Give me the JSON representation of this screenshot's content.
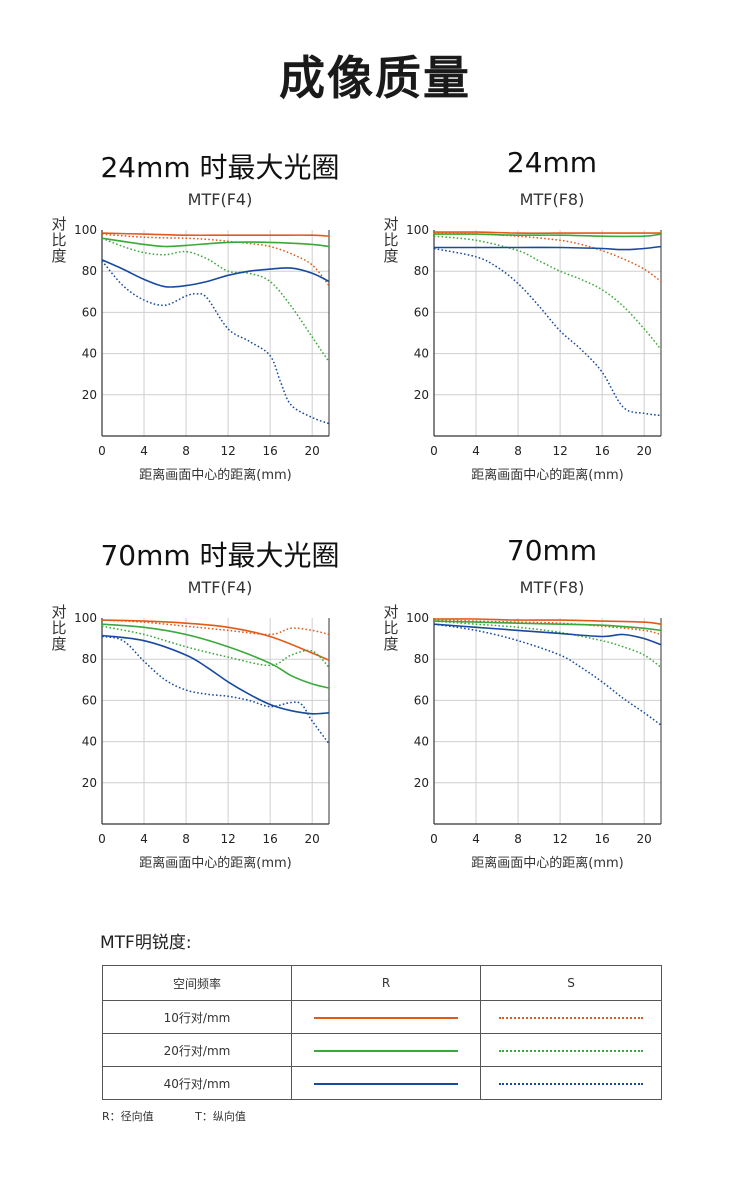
{
  "page_title": "成像质量",
  "colors": {
    "10": "#e05a1a",
    "20": "#3aa83a",
    "40": "#174a9e"
  },
  "panel_labels": {
    "ylabel": "对比度",
    "xlabel": "距离画面中心的距离(mm)"
  },
  "chart_data": [
    {
      "type": "line",
      "title": "24mm 时最大光圈",
      "subtitle": "MTF(F4)",
      "xlabel": "距离画面中心的距离(mm)",
      "ylabel": "对比度",
      "xlim": [
        0,
        21.6
      ],
      "ylim": [
        0,
        100
      ],
      "xticks": [
        0,
        4,
        8,
        12,
        16,
        20
      ],
      "yticks": [
        20,
        40,
        60,
        80,
        100
      ],
      "series": [
        {
          "freq": "10",
          "style": "R",
          "x": [
            0,
            4,
            8,
            12,
            16,
            20,
            21.6
          ],
          "y": [
            98.5,
            98,
            97.5,
            97.5,
            97.5,
            97.5,
            97
          ]
        },
        {
          "freq": "10",
          "style": "S",
          "x": [
            0,
            4,
            8,
            10,
            12,
            14,
            16,
            18,
            20,
            21.6
          ],
          "y": [
            98,
            96.5,
            96,
            95.5,
            94.5,
            93.5,
            92,
            88.5,
            83,
            73
          ]
        },
        {
          "freq": "20",
          "style": "R",
          "x": [
            0,
            4,
            6,
            8,
            12,
            16,
            20,
            21.6
          ],
          "y": [
            96,
            93,
            92,
            92.5,
            94,
            94,
            93,
            92
          ]
        },
        {
          "freq": "20",
          "style": "S",
          "x": [
            0,
            2,
            4,
            6,
            8,
            10,
            12,
            14,
            16,
            18,
            20,
            21.6
          ],
          "y": [
            96,
            92,
            89,
            88,
            89.5,
            86,
            80,
            79,
            75,
            63,
            48,
            36
          ]
        },
        {
          "freq": "40",
          "style": "R",
          "x": [
            0,
            2,
            4,
            6,
            8,
            10,
            12,
            14,
            16,
            18,
            20,
            21.6
          ],
          "y": [
            85.5,
            81,
            76,
            72.5,
            73,
            75,
            78,
            80,
            81,
            81.5,
            79,
            75
          ]
        },
        {
          "freq": "40",
          "style": "S",
          "x": [
            0,
            2,
            4,
            6,
            8,
            9,
            10,
            12,
            14,
            16,
            17,
            18,
            20,
            21.6
          ],
          "y": [
            85,
            73,
            66,
            63.5,
            68,
            69,
            67,
            52,
            46,
            39,
            26,
            15,
            9,
            6
          ]
        }
      ]
    },
    {
      "type": "line",
      "title": "24mm",
      "subtitle": "MTF(F8)",
      "xlabel": "距离画面中心的距离(mm)",
      "ylabel": "对比度",
      "xlim": [
        0,
        21.6
      ],
      "ylim": [
        0,
        100
      ],
      "xticks": [
        0,
        4,
        8,
        12,
        16,
        20
      ],
      "yticks": [
        20,
        40,
        60,
        80,
        100
      ],
      "series": [
        {
          "freq": "10",
          "style": "R",
          "x": [
            0,
            4,
            8,
            12,
            16,
            20,
            21.6
          ],
          "y": [
            99,
            99,
            98.5,
            98.5,
            98.5,
            98.5,
            98.5
          ]
        },
        {
          "freq": "10",
          "style": "S",
          "x": [
            0,
            4,
            8,
            12,
            14,
            16,
            18,
            20,
            21.6
          ],
          "y": [
            98.5,
            98,
            97,
            95,
            93,
            90,
            86,
            81,
            75
          ]
        },
        {
          "freq": "20",
          "style": "R",
          "x": [
            0,
            4,
            8,
            12,
            16,
            20,
            21.6
          ],
          "y": [
            98,
            98,
            97.5,
            97.5,
            97,
            97,
            98
          ]
        },
        {
          "freq": "20",
          "style": "S",
          "x": [
            0,
            4,
            8,
            10,
            12,
            14,
            16,
            18,
            20,
            21.6
          ],
          "y": [
            97,
            95,
            90,
            85,
            80,
            76,
            71,
            63,
            52,
            42
          ]
        },
        {
          "freq": "40",
          "style": "R",
          "x": [
            0,
            4,
            8,
            12,
            16,
            18,
            20,
            21.6
          ],
          "y": [
            91.5,
            91.5,
            91.5,
            91.5,
            91,
            90.5,
            91,
            92
          ]
        },
        {
          "freq": "40",
          "style": "S",
          "x": [
            0,
            4,
            6,
            8,
            10,
            12,
            14,
            16,
            18,
            20,
            21.6
          ],
          "y": [
            91,
            87,
            82,
            74,
            63,
            51,
            42,
            31,
            14,
            11,
            10
          ]
        }
      ]
    },
    {
      "type": "line",
      "title": "70mm 时最大光圈",
      "subtitle": "MTF(F4)",
      "xlabel": "距离画面中心的距离(mm)",
      "ylabel": "对比度",
      "xlim": [
        0,
        21.6
      ],
      "ylim": [
        0,
        100
      ],
      "xticks": [
        0,
        4,
        8,
        12,
        16,
        20
      ],
      "yticks": [
        20,
        40,
        60,
        80,
        100
      ],
      "series": [
        {
          "freq": "10",
          "style": "R",
          "x": [
            0,
            4,
            8,
            12,
            16,
            20,
            21.6
          ],
          "y": [
            99,
            98.5,
            97.5,
            95.5,
            91,
            83,
            79.5
          ]
        },
        {
          "freq": "10",
          "style": "S",
          "x": [
            0,
            4,
            8,
            12,
            16,
            18,
            20,
            21.6
          ],
          "y": [
            99,
            98,
            96,
            94,
            92,
            95,
            94,
            92
          ]
        },
        {
          "freq": "20",
          "style": "R",
          "x": [
            0,
            4,
            8,
            12,
            16,
            18,
            20,
            21.6
          ],
          "y": [
            97,
            95.5,
            92,
            86,
            78,
            72,
            68,
            66
          ]
        },
        {
          "freq": "20",
          "style": "S",
          "x": [
            0,
            4,
            8,
            12,
            16,
            18,
            20,
            21.6
          ],
          "y": [
            96,
            92,
            86,
            81,
            77,
            82,
            84,
            76
          ]
        },
        {
          "freq": "40",
          "style": "R",
          "x": [
            0,
            4,
            8,
            10,
            12,
            14,
            16,
            18,
            20,
            21.6
          ],
          "y": [
            91.5,
            89,
            82,
            76,
            69,
            63,
            58,
            55,
            53.5,
            54
          ]
        },
        {
          "freq": "40",
          "style": "S",
          "x": [
            0,
            2,
            4,
            6,
            8,
            10,
            12,
            14,
            16,
            18,
            19,
            20,
            21.6
          ],
          "y": [
            91,
            89,
            79,
            70,
            65,
            63,
            62,
            60,
            57,
            59,
            58,
            50,
            39
          ]
        }
      ]
    },
    {
      "type": "line",
      "title": "70mm",
      "subtitle": "MTF(F8)",
      "xlabel": "距离画面中心的距离(mm)",
      "ylabel": "对比度",
      "xlim": [
        0,
        21.6
      ],
      "ylim": [
        0,
        100
      ],
      "xticks": [
        0,
        4,
        8,
        12,
        16,
        20
      ],
      "yticks": [
        20,
        40,
        60,
        80,
        100
      ],
      "series": [
        {
          "freq": "10",
          "style": "R",
          "x": [
            0,
            4,
            8,
            12,
            16,
            20,
            21.6
          ],
          "y": [
            99.5,
            99.5,
            99,
            99,
            98.5,
            98,
            97
          ]
        },
        {
          "freq": "10",
          "style": "S",
          "x": [
            0,
            4,
            8,
            12,
            16,
            20,
            21.6
          ],
          "y": [
            99,
            98.5,
            98,
            97.5,
            96,
            94,
            92
          ]
        },
        {
          "freq": "20",
          "style": "R",
          "x": [
            0,
            4,
            8,
            12,
            16,
            20,
            21.6
          ],
          "y": [
            98.5,
            98,
            97.5,
            97,
            96.5,
            95,
            94
          ]
        },
        {
          "freq": "20",
          "style": "S",
          "x": [
            0,
            4,
            8,
            12,
            16,
            18,
            20,
            21.6
          ],
          "y": [
            98.5,
            97,
            95.5,
            93,
            89,
            86,
            82,
            76
          ]
        },
        {
          "freq": "40",
          "style": "R",
          "x": [
            0,
            4,
            8,
            12,
            16,
            18,
            20,
            21.6
          ],
          "y": [
            97,
            95.5,
            94,
            92.5,
            91,
            92,
            90,
            87
          ]
        },
        {
          "freq": "40",
          "style": "S",
          "x": [
            0,
            4,
            8,
            12,
            14,
            16,
            18,
            20,
            21.6
          ],
          "y": [
            97,
            94,
            89,
            82,
            76,
            69,
            61,
            54,
            48
          ]
        }
      ]
    }
  ],
  "legend": {
    "title": "MTF明锐度:",
    "headers": {
      "freq": "空间频率",
      "r": "R",
      "s": "S"
    },
    "rows": [
      {
        "label": "10行对/mm",
        "freq": "10"
      },
      {
        "label": "20行对/mm",
        "freq": "20"
      },
      {
        "label": "40行对/mm",
        "freq": "40"
      }
    ],
    "footnote_r": "R：径向值",
    "footnote_t": "T：纵向值"
  }
}
